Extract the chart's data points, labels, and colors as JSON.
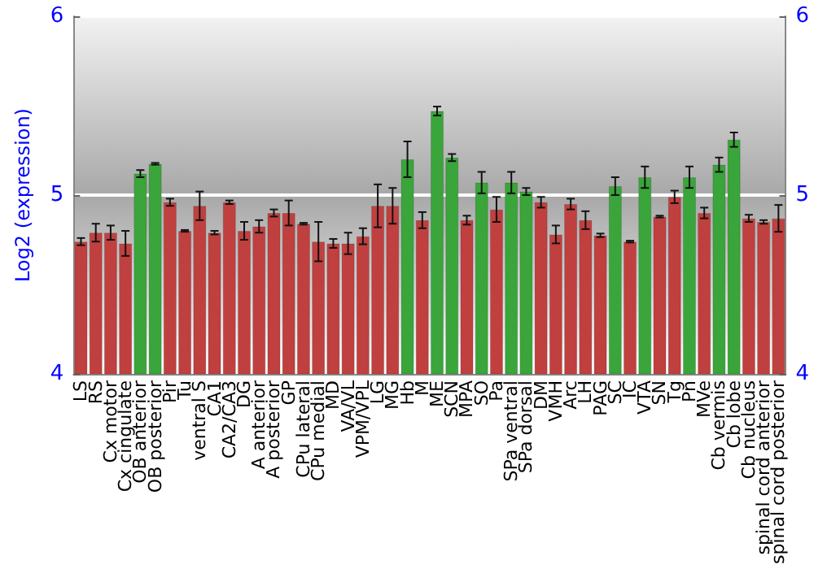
{
  "chart_data": {
    "type": "bar",
    "ylabel": "Log2 (expression)",
    "categories": [
      "LS",
      "RS",
      "Cx motor",
      "Cx cingulate",
      "OB anterior",
      "OB posterior",
      "Pir",
      "Tu",
      "ventral S",
      "CA1",
      "CA2/CA3",
      "DG",
      "A anterior",
      "A posterior",
      "GP",
      "CPu lateral",
      "CPu medial",
      "MD",
      "VA/VL",
      "VPM/VPL",
      "LG",
      "MG",
      "Hb",
      "M",
      "ME",
      "SCN",
      "MPA",
      "SO",
      "Pa",
      "SPa ventral",
      "SPa dorsal",
      "DM",
      "VMH",
      "Arc",
      "LH",
      "PAG",
      "SC",
      "IC",
      "VTA",
      "SN",
      "Tg",
      "Pn",
      "MVe",
      "Cb vermis",
      "Cb lobe",
      "Cb nucleus",
      "spinal cord anterior",
      "spinal cord posterior"
    ],
    "values": [
      4.74,
      4.79,
      4.79,
      4.73,
      5.12,
      5.175,
      4.96,
      4.8,
      4.94,
      4.79,
      4.96,
      4.8,
      4.825,
      4.9,
      4.9,
      4.84,
      4.74,
      4.73,
      4.73,
      4.77,
      4.94,
      4.94,
      5.2,
      4.86,
      5.47,
      5.21,
      4.86,
      5.07,
      4.92,
      5.07,
      5.02,
      4.96,
      4.78,
      4.95,
      4.86,
      4.775,
      5.05,
      4.74,
      5.1,
      4.88,
      4.99,
      5.1,
      4.9,
      5.17,
      5.31,
      4.87,
      4.85,
      4.87
    ],
    "errors": [
      0.02,
      0.05,
      0.04,
      0.07,
      0.02,
      0.005,
      0.02,
      0.005,
      0.08,
      0.01,
      0.01,
      0.05,
      0.035,
      0.02,
      0.07,
      0.005,
      0.11,
      0.025,
      0.06,
      0.045,
      0.12,
      0.1,
      0.1,
      0.045,
      0.025,
      0.02,
      0.025,
      0.06,
      0.07,
      0.06,
      0.02,
      0.03,
      0.05,
      0.03,
      0.05,
      0.01,
      0.05,
      0.005,
      0.06,
      0.005,
      0.035,
      0.06,
      0.03,
      0.04,
      0.04,
      0.02,
      0.01,
      0.075
    ],
    "colors": [
      "#c0403f",
      "#c0403f",
      "#c0403f",
      "#c0403f",
      "#3aa53a",
      "#3aa53a",
      "#c0403f",
      "#c0403f",
      "#c0403f",
      "#c0403f",
      "#c0403f",
      "#c0403f",
      "#c0403f",
      "#c0403f",
      "#c0403f",
      "#c0403f",
      "#c0403f",
      "#c0403f",
      "#c0403f",
      "#c0403f",
      "#c0403f",
      "#c0403f",
      "#3aa53a",
      "#c0403f",
      "#3aa53a",
      "#3aa53a",
      "#c0403f",
      "#3aa53a",
      "#c0403f",
      "#3aa53a",
      "#3aa53a",
      "#c0403f",
      "#c0403f",
      "#c0403f",
      "#c0403f",
      "#c0403f",
      "#3aa53a",
      "#c0403f",
      "#3aa53a",
      "#c0403f",
      "#c0403f",
      "#3aa53a",
      "#c0403f",
      "#3aa53a",
      "#3aa53a",
      "#c0403f",
      "#c0403f",
      "#c0403f"
    ],
    "ylim": [
      4,
      6
    ],
    "yticks": [
      4,
      5,
      6
    ],
    "y2lim": [
      4,
      6
    ],
    "y2ticks": [
      4,
      5,
      6
    ],
    "grid": "y"
  }
}
